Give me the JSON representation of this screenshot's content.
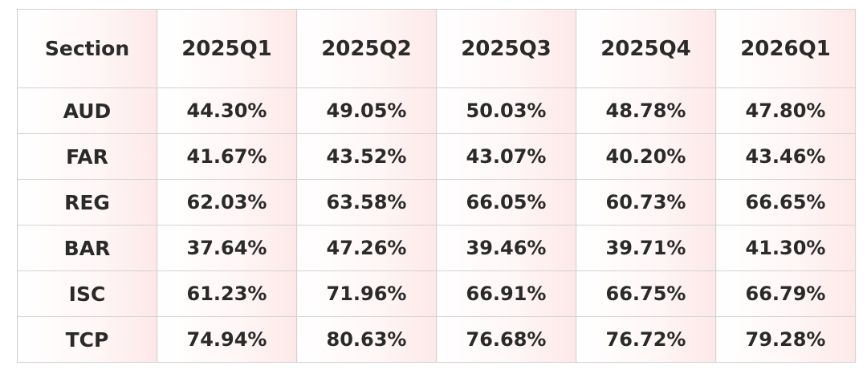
{
  "chart_data": {
    "type": "table",
    "columns": [
      "Section",
      "2025Q1",
      "2025Q2",
      "2025Q3",
      "2025Q4",
      "2026Q1"
    ],
    "rows": [
      {
        "label": "AUD",
        "values": [
          "44.30%",
          "49.05%",
          "50.03%",
          "48.78%",
          "47.80%"
        ]
      },
      {
        "label": "FAR",
        "values": [
          "41.67%",
          "43.52%",
          "43.07%",
          "40.20%",
          "43.46%"
        ]
      },
      {
        "label": "REG",
        "values": [
          "62.03%",
          "63.58%",
          "66.05%",
          "60.73%",
          "66.65%"
        ]
      },
      {
        "label": "BAR",
        "values": [
          "37.64%",
          "47.26%",
          "39.46%",
          "39.71%",
          "41.30%"
        ]
      },
      {
        "label": "ISC",
        "values": [
          "61.23%",
          "71.96%",
          "66.91%",
          "66.75%",
          "66.79%"
        ]
      },
      {
        "label": "TCP",
        "values": [
          "74.94%",
          "80.63%",
          "76.68%",
          "76.72%",
          "79.28%"
        ]
      }
    ],
    "colors": {
      "border": "#d3d3d3",
      "text": "#2a2a2a",
      "cell_gradient_end": "#fde8e8"
    }
  }
}
